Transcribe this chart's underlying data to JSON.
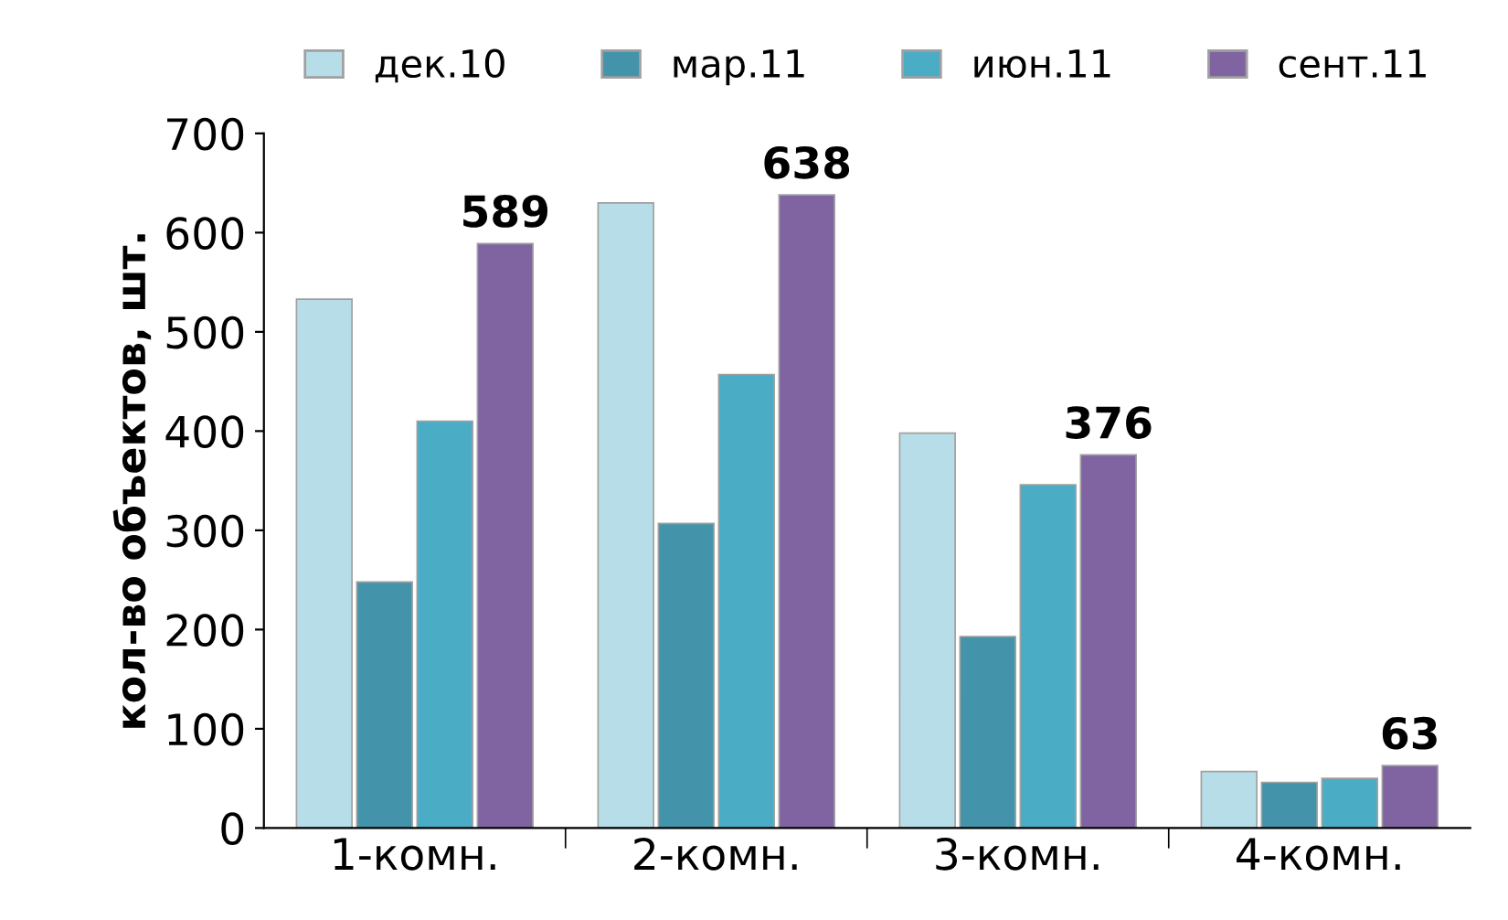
{
  "chart_data": {
    "type": "bar",
    "ylabel": "кол-во объектов, шт.",
    "categories": [
      "1-комн.",
      "2-комн.",
      "3-комн.",
      "4-комн."
    ],
    "series": [
      {
        "name": "дек.10",
        "color": "#b7dee8",
        "values": [
          533,
          630,
          398,
          57
        ]
      },
      {
        "name": "мар.11",
        "color": "#4394aa",
        "values": [
          248,
          307,
          193,
          46
        ]
      },
      {
        "name": "июн.11",
        "color": "#4bacc6",
        "values": [
          410,
          457,
          346,
          50
        ]
      },
      {
        "name": "сент.11",
        "color": "#8064a2",
        "values": [
          589,
          638,
          376,
          63
        ],
        "value_labels": [
          "589",
          "638",
          "376",
          "63"
        ]
      }
    ],
    "ylim": [
      0,
      700
    ],
    "yticks": [
      0,
      100,
      200,
      300,
      400,
      500,
      600,
      700
    ],
    "grid": false,
    "legend": "top"
  }
}
